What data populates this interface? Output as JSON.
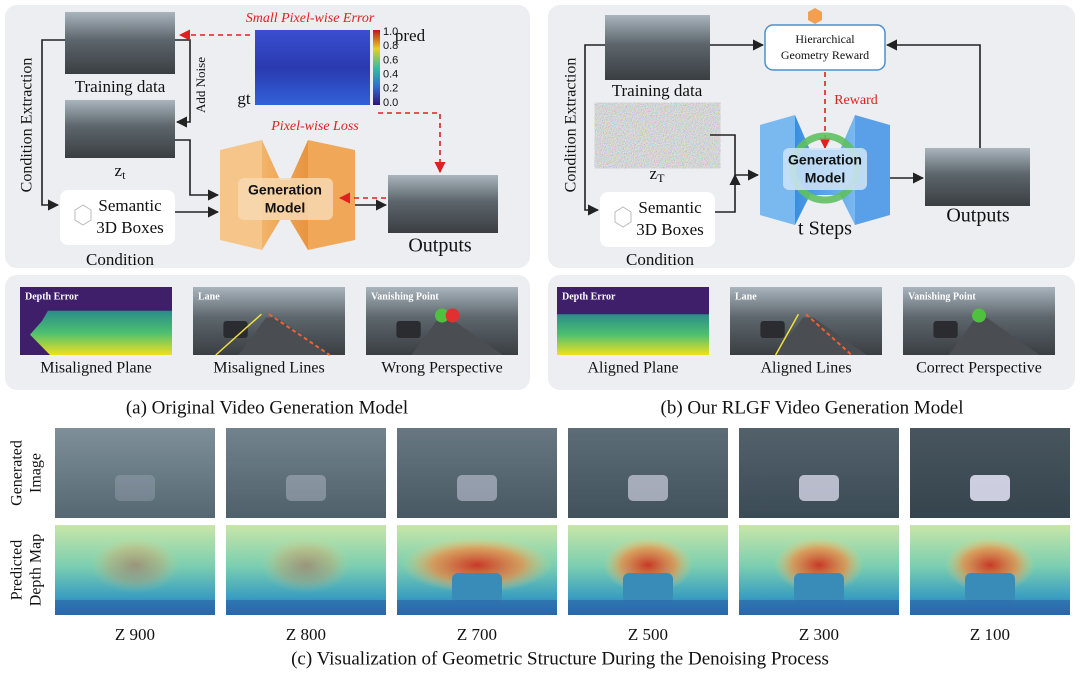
{
  "panel_a": {
    "top": {
      "error_title": "Small Pixel-wise Error",
      "pred": "pred",
      "gt": "gt",
      "colorbar_ticks": [
        "1.0",
        "0.8",
        "0.6",
        "0.4",
        "0.2",
        "0.0"
      ],
      "training_data": "Training data",
      "add_noise": "Add Noise",
      "latent": {
        "base": "z",
        "sub": "t"
      },
      "condition_extraction": "Condition Extraction",
      "loss": "Pixel-wise Loss",
      "boxes": [
        "Semantic",
        "3D Boxes"
      ],
      "model": [
        "Generation",
        "Model"
      ],
      "outputs": "Outputs",
      "condition": "Condition"
    },
    "examples": [
      {
        "tag": "Depth Error",
        "label": "Misaligned Plane"
      },
      {
        "tag": "Lane",
        "label": "Misaligned Lines"
      },
      {
        "tag": "Vanishing Point",
        "label": "Wrong Perspective"
      }
    ],
    "caption": "(a) Original Video Generation Model"
  },
  "panel_b": {
    "top": {
      "training_data": "Training data",
      "reward_box": [
        "Hierarchical",
        "Geometry Reward"
      ],
      "reward": "Reward",
      "condition_extraction": "Condition Extraction",
      "latent": {
        "base": "z",
        "sub": "T"
      },
      "model": [
        "Generation",
        "Model"
      ],
      "boxes": [
        "Semantic",
        "3D Boxes"
      ],
      "condition": "Condition",
      "steps": "t Steps",
      "outputs": "Outputs"
    },
    "examples": [
      {
        "tag": "Depth Error",
        "label": "Aligned Plane"
      },
      {
        "tag": "Lane",
        "label": "Aligned Lines"
      },
      {
        "tag": "Vanishing Point",
        "label": "Correct Perspective"
      }
    ],
    "caption": "(b) Our RLGF Video Generation Model"
  },
  "panel_c": {
    "row_labels": [
      [
        "Generated",
        "Image"
      ],
      [
        "Predicted",
        "Depth Map"
      ]
    ],
    "columns": [
      "Z 900",
      "Z 800",
      "Z 700",
      "Z 500",
      "Z 300",
      "Z 100"
    ],
    "caption": "(c) Visualization of Geometric Structure During the Denoising Process"
  }
}
